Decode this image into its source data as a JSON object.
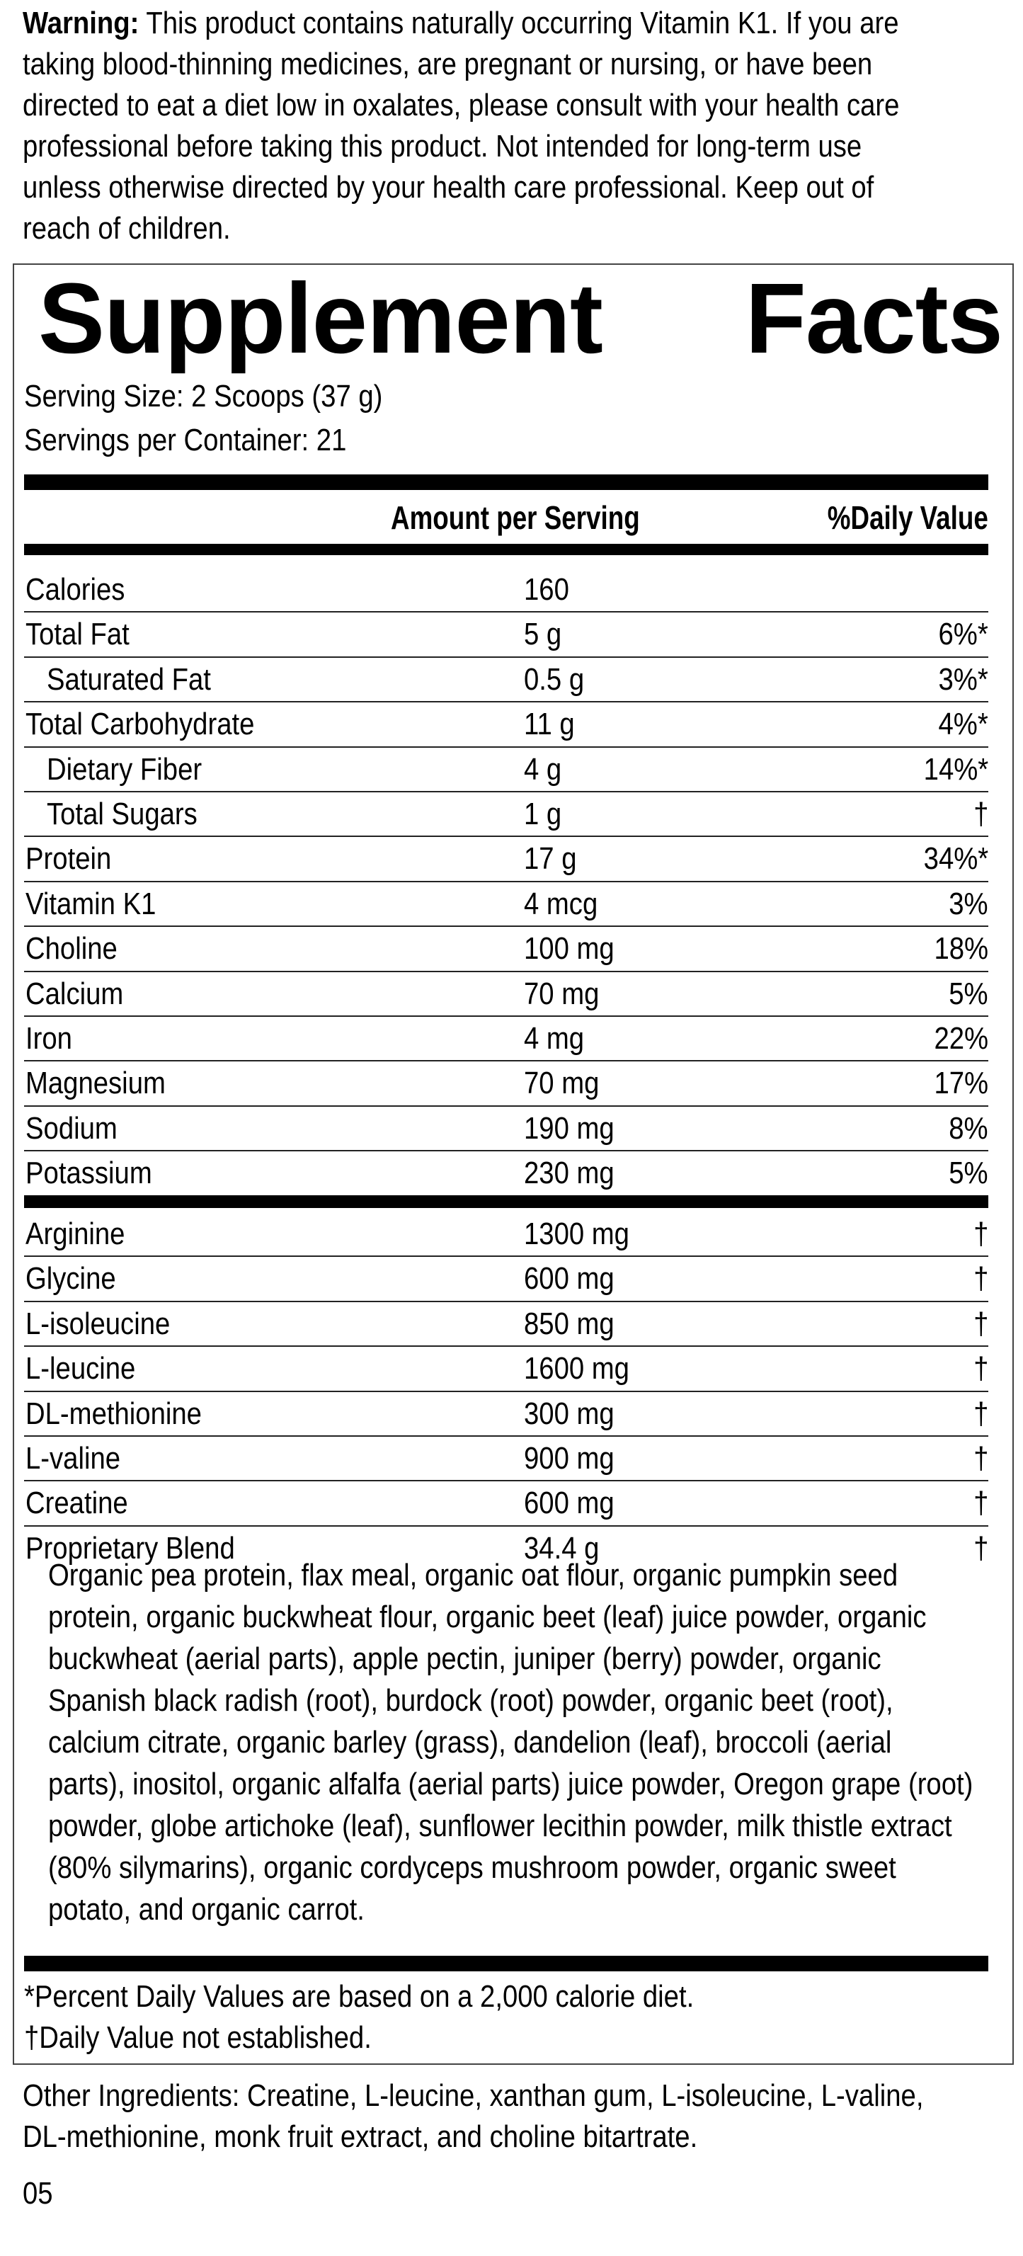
{
  "warning": {
    "label": "Warning:",
    "lines": [
      " This product contains naturally occurring Vitamin K1. If you are",
      "taking blood-thinning medicines, are pregnant or nursing, or have been",
      "directed to eat a diet low in oxalates, please consult with your health care",
      "professional before taking this product. Not intended for long-term use",
      "unless otherwise directed by your health care professional. Keep out of",
      "reach of children."
    ]
  },
  "facts": {
    "title_word1": "Supplement",
    "title_word2": "Facts",
    "serving_size": "Serving Size: 2 Scoops (37 g)",
    "servings_per_container": "Servings per Container: 21",
    "col_amount": "Amount per Serving",
    "col_dv": "%Daily Value",
    "nutrients": [
      {
        "name": "Calories",
        "amount": "160",
        "dv": ""
      },
      {
        "name": "Total Fat",
        "amount": "5 g",
        "dv": "6%*"
      },
      {
        "name": "Saturated Fat",
        "amount": "0.5 g",
        "dv": "3%*"
      },
      {
        "name": "Total Carbohydrate",
        "amount": "11 g",
        "dv": "4%*"
      },
      {
        "name": "Dietary Fiber",
        "amount": "4 g",
        "dv": "14%*"
      },
      {
        "name": "Total Sugars",
        "amount": "1 g",
        "dv": "†"
      },
      {
        "name": "Protein",
        "amount": "17 g",
        "dv": "34%*"
      },
      {
        "name": "Vitamin K1",
        "amount": "4 mcg",
        "dv": "3%"
      },
      {
        "name": "Choline",
        "amount": "100 mg",
        "dv": "18%"
      },
      {
        "name": "Calcium",
        "amount": "70 mg",
        "dv": "5%"
      },
      {
        "name": "Iron",
        "amount": "4 mg",
        "dv": "22%"
      },
      {
        "name": "Magnesium",
        "amount": "70 mg",
        "dv": "17%"
      },
      {
        "name": "Sodium",
        "amount": "190 mg",
        "dv": "8%"
      },
      {
        "name": "Potassium",
        "amount": "230 mg",
        "dv": "5%"
      }
    ],
    "others": [
      {
        "name": "Arginine",
        "amount": "1300 mg",
        "dv": "†"
      },
      {
        "name": "Glycine",
        "amount": "600 mg",
        "dv": "†"
      },
      {
        "name": "L-isoleucine",
        "amount": "850 mg",
        "dv": "†"
      },
      {
        "name": "L-leucine",
        "amount": "1600 mg",
        "dv": "†"
      },
      {
        "name": "DL-methionine",
        "amount": "300 mg",
        "dv": "†"
      },
      {
        "name": "L-valine",
        "amount": "900 mg",
        "dv": "†"
      },
      {
        "name": "Creatine",
        "amount": "600 mg",
        "dv": "†"
      },
      {
        "name": "Proprietary Blend",
        "amount": "34.4 g",
        "dv": "†"
      }
    ],
    "blend_lines": [
      "Organic pea protein, flax meal, organic oat flour, organic pumpkin seed",
      "protein, organic buckwheat flour, organic beet (leaf) juice powder, organic",
      "buckwheat (aerial parts), apple pectin, juniper (berry) powder, organic",
      "Spanish black radish (root), burdock (root) powder, organic beet (root),",
      "calcium citrate, organic barley (grass), dandelion (leaf), broccoli (aerial",
      "parts), inositol, organic alfalfa (aerial parts) juice powder, Oregon grape (root)",
      "powder, globe artichoke (leaf), sunflower lecithin powder, milk thistle extract",
      "(80% silymarins), organic cordyceps mushroom powder, organic sweet",
      "potato, and organic carrot."
    ],
    "footnote_1": "*Percent Daily Values are based on a 2,000 calorie diet.",
    "footnote_2": "†Daily Value not established."
  },
  "other_ingredients": {
    "lines": [
      "Other Ingredients: Creatine, L-leucine, xanthan gum, L-isoleucine, L-valine,",
      "DL-methionine, monk fruit extract, and choline bitartrate."
    ]
  },
  "code": "05"
}
